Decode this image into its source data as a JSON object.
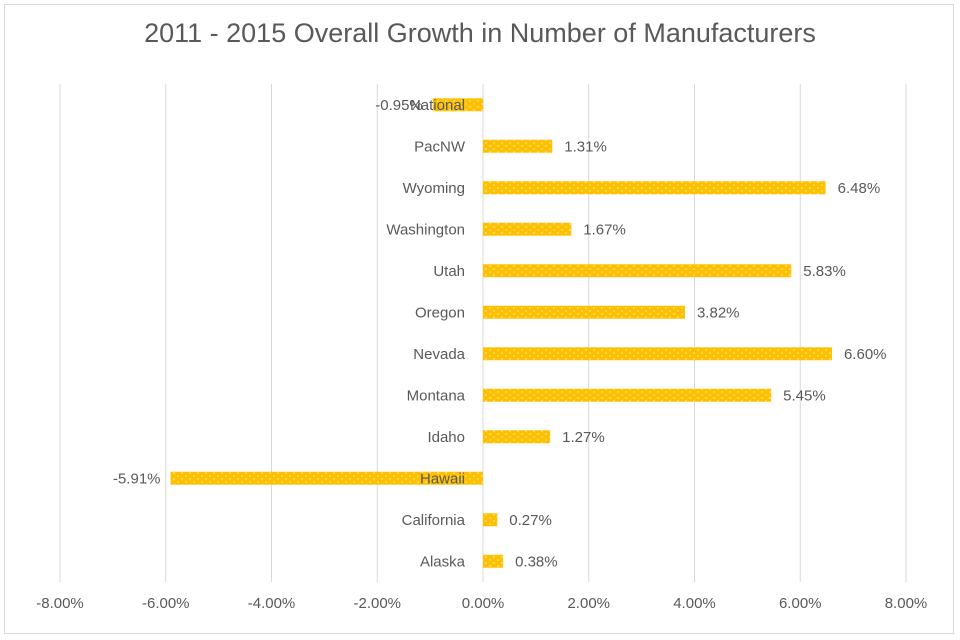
{
  "chart_data": {
    "type": "bar",
    "orientation": "horizontal",
    "title": "2011 - 2015 Overall Growth in Number of Manufacturers",
    "xlabel": "",
    "ylabel": "",
    "categories": [
      "National",
      "PacNW",
      "Wyoming",
      "Washington",
      "Utah",
      "Oregon",
      "Nevada",
      "Montana",
      "Idaho",
      "Hawaii",
      "California",
      "Alaska"
    ],
    "values": [
      -0.95,
      1.31,
      6.48,
      1.67,
      5.83,
      3.82,
      6.6,
      5.45,
      1.27,
      -5.91,
      0.27,
      0.38
    ],
    "data_labels": [
      "-0.95%",
      "1.31%",
      "6.48%",
      "1.67%",
      "5.83%",
      "3.82%",
      "6.60%",
      "5.45%",
      "1.27%",
      "-5.91%",
      "0.27%",
      "0.38%"
    ],
    "xlim": [
      -8,
      8
    ],
    "x_ticks": [
      -8,
      -6,
      -4,
      -2,
      0,
      2,
      4,
      6,
      8
    ],
    "x_tick_labels": [
      "-8.00%",
      "-6.00%",
      "-4.00%",
      "-2.00%",
      "0.00%",
      "2.00%",
      "4.00%",
      "6.00%",
      "8.00%"
    ],
    "grid": "vertical",
    "legend": "none",
    "bar_color": "#FFC000",
    "bar_pattern": "dotted"
  }
}
